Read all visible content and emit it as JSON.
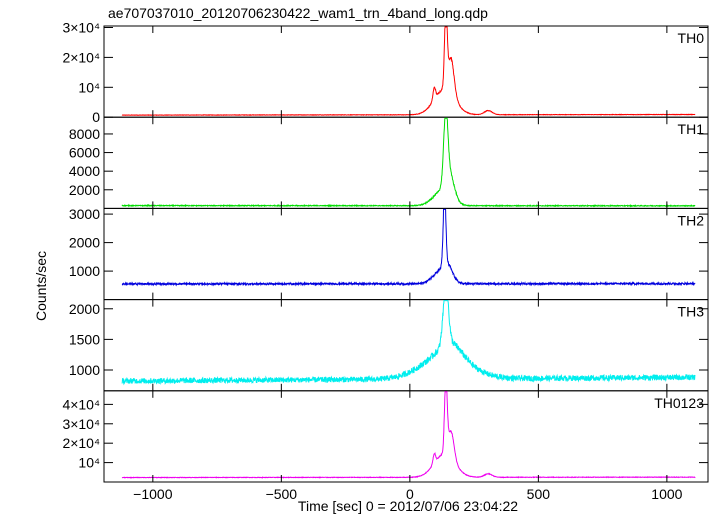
{
  "chart_data": {
    "type": "line",
    "title": "ae707037010_20120706230422_wam1_trn_4band_long.qdp",
    "xlabel": "Time [sec] 0 = 2012/07/06 23:04:22",
    "ylabel": "Counts/sec",
    "xlim": [
      -1190,
      1160
    ],
    "x_ticks": [
      -1000,
      -500,
      0,
      500,
      1000
    ],
    "x_tick_labels": [
      "−1000",
      "−500",
      "0",
      "500",
      "1000"
    ],
    "x_range": [
      -1120,
      1110
    ],
    "panels": [
      {
        "name": "TH0",
        "color": "#ff0000",
        "ylim": [
          0,
          30500
        ],
        "y_ticks": [
          0,
          10000,
          20000,
          30000
        ],
        "y_tick_labels": [
          "0",
          "10⁴",
          "2×10⁴",
          "3×10⁴"
        ],
        "baseline_start": 700,
        "baseline_end": 900,
        "noise": 60,
        "features": [
          {
            "center": 135,
            "amp": 8500,
            "width": 40
          },
          {
            "center": 140,
            "amp": 26000,
            "width": 5
          },
          {
            "center": 95,
            "amp": 4000,
            "width": 5
          },
          {
            "center": 160,
            "amp": 12000,
            "width": 12
          },
          {
            "center": 305,
            "amp": 1400,
            "width": 15
          }
        ]
      },
      {
        "name": "TH1",
        "color": "#00dd00",
        "ylim": [
          0,
          9800
        ],
        "y_ticks": [
          2000,
          4000,
          6000,
          8000
        ],
        "y_tick_labels": [
          "2000",
          "4000",
          "6000",
          "8000"
        ],
        "baseline_start": 300,
        "baseline_end": 280,
        "noise": 40,
        "features": [
          {
            "center": 125,
            "amp": 1500,
            "width": 35
          },
          {
            "center": 140,
            "amp": 7500,
            "width": 8
          },
          {
            "center": 155,
            "amp": 2500,
            "width": 18
          }
        ]
      },
      {
        "name": "TH2",
        "color": "#0000dd",
        "ylim": [
          0,
          3200
        ],
        "y_ticks": [
          1000,
          2000,
          3000
        ],
        "y_tick_labels": [
          "1000",
          "2000",
          "3000"
        ],
        "baseline_start": 550,
        "baseline_end": 560,
        "noise": 30,
        "features": [
          {
            "center": 120,
            "amp": 450,
            "width": 30
          },
          {
            "center": 135,
            "amp": 2600,
            "width": 5
          },
          {
            "center": 150,
            "amp": 400,
            "width": 18
          }
        ]
      },
      {
        "name": "TH3",
        "color": "#00eeee",
        "ylim": [
          660,
          2150
        ],
        "y_ticks": [
          1000,
          1500,
          2000
        ],
        "y_tick_labels": [
          "1000",
          "1500",
          "2000"
        ],
        "baseline_start": 820,
        "baseline_end": 880,
        "noise": 45,
        "features": [
          {
            "center": 140,
            "amp": 400,
            "width": 90
          },
          {
            "center": 140,
            "amp": 1000,
            "width": 10
          },
          {
            "center": 160,
            "amp": 200,
            "width": 40
          }
        ]
      },
      {
        "name": "TH0123",
        "color": "#ee00ee",
        "ylim": [
          0,
          47000
        ],
        "y_ticks": [
          10000,
          20000,
          30000,
          40000
        ],
        "y_tick_labels": [
          "10⁴",
          "2×10⁴",
          "3×10⁴",
          "4×10⁴"
        ],
        "baseline_start": 2300,
        "baseline_end": 2500,
        "noise": 120,
        "features": [
          {
            "center": 135,
            "amp": 12000,
            "width": 40
          },
          {
            "center": 140,
            "amp": 38000,
            "width": 5
          },
          {
            "center": 95,
            "amp": 5000,
            "width": 5
          },
          {
            "center": 160,
            "amp": 14000,
            "width": 12
          },
          {
            "center": 305,
            "amp": 1800,
            "width": 15
          }
        ]
      }
    ]
  }
}
